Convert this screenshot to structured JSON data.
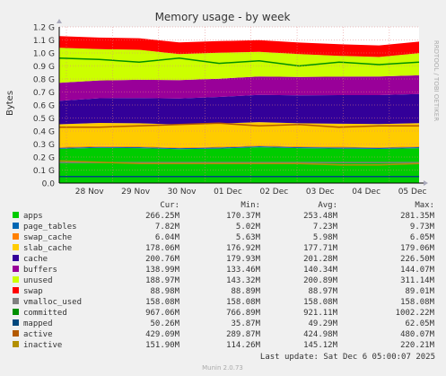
{
  "chart_data": {
    "type": "area",
    "title": "Memory usage - by week",
    "ylabel": "Bytes",
    "watermark": "RRDTOOL / TOBI OETIKER",
    "footer": "Munin 2.0.73",
    "ylim": [
      0,
      1.2
    ],
    "y_unit": "G",
    "y_ticks": [
      "0.0",
      "0.1 G",
      "0.2 G",
      "0.3 G",
      "0.4 G",
      "0.5 G",
      "0.6 G",
      "0.7 G",
      "0.8 G",
      "0.9 G",
      "1.0 G",
      "1.1 G",
      "1.2 G"
    ],
    "x_ticks": [
      "28 Nov",
      "29 Nov",
      "30 Nov",
      "01 Dec",
      "02 Dec",
      "03 Dec",
      "04 Dec",
      "05 Dec"
    ],
    "grid": true,
    "stack_series": [
      {
        "name": "apps",
        "color": "#00cc00",
        "values": [
          0.263,
          0.27,
          0.268,
          0.26,
          0.265,
          0.275,
          0.268,
          0.265,
          0.262,
          0.268
        ]
      },
      {
        "name": "page_tables",
        "color": "#0066b3",
        "values": [
          0.008,
          0.008,
          0.008,
          0.008,
          0.008,
          0.008,
          0.008,
          0.008,
          0.008,
          0.008
        ]
      },
      {
        "name": "swap_cache",
        "color": "#ff8000",
        "values": [
          0.006,
          0.006,
          0.006,
          0.006,
          0.006,
          0.006,
          0.006,
          0.006,
          0.006,
          0.006
        ]
      },
      {
        "name": "slab_cache",
        "color": "#ffcc00",
        "values": [
          0.175,
          0.178,
          0.177,
          0.176,
          0.178,
          0.179,
          0.177,
          0.177,
          0.178,
          0.178
        ]
      },
      {
        "name": "cache",
        "color": "#330099",
        "values": [
          0.18,
          0.19,
          0.195,
          0.2,
          0.205,
          0.21,
          0.215,
          0.22,
          0.222,
          0.225
        ]
      },
      {
        "name": "buffers",
        "color": "#990099",
        "values": [
          0.138,
          0.137,
          0.14,
          0.142,
          0.14,
          0.141,
          0.142,
          0.142,
          0.143,
          0.143
        ]
      },
      {
        "name": "unused",
        "color": "#ccff00",
        "values": [
          0.27,
          0.24,
          0.23,
          0.2,
          0.2,
          0.19,
          0.175,
          0.16,
          0.15,
          0.17
        ]
      },
      {
        "name": "swap",
        "color": "#ff0000",
        "values": [
          0.089,
          0.089,
          0.089,
          0.089,
          0.089,
          0.089,
          0.089,
          0.089,
          0.089,
          0.089
        ]
      }
    ],
    "line_series": [
      {
        "name": "vmalloc_used",
        "color": "#808080",
        "values": [
          0.158,
          0.158,
          0.158,
          0.158,
          0.158,
          0.158,
          0.158,
          0.158,
          0.158,
          0.158
        ]
      },
      {
        "name": "committed",
        "color": "#008f00",
        "values": [
          0.96,
          0.95,
          0.93,
          0.96,
          0.92,
          0.94,
          0.9,
          0.93,
          0.91,
          0.93
        ]
      },
      {
        "name": "mapped",
        "color": "#00487d",
        "values": [
          0.05,
          0.05,
          0.05,
          0.05,
          0.05,
          0.05,
          0.05,
          0.05,
          0.05,
          0.05
        ]
      },
      {
        "name": "active",
        "color": "#b35a00",
        "values": [
          0.43,
          0.43,
          0.44,
          0.45,
          0.46,
          0.44,
          0.45,
          0.43,
          0.44,
          0.44
        ]
      },
      {
        "name": "inactive",
        "color": "#b38f00",
        "values": [
          0.17,
          0.16,
          0.15,
          0.15,
          0.15,
          0.15,
          0.15,
          0.14,
          0.14,
          0.15
        ]
      }
    ],
    "legend": {
      "headers": [
        "Cur:",
        "Min:",
        "Avg:",
        "Max:"
      ],
      "rows": [
        {
          "name": "apps",
          "color": "#00cc00",
          "cur": "266.25M",
          "min": "170.37M",
          "avg": "253.48M",
          "max": "281.35M"
        },
        {
          "name": "page_tables",
          "color": "#0066b3",
          "cur": "7.82M",
          "min": "5.02M",
          "avg": "7.23M",
          "max": "9.73M"
        },
        {
          "name": "swap_cache",
          "color": "#ff8000",
          "cur": "6.04M",
          "min": "5.63M",
          "avg": "5.98M",
          "max": "6.05M"
        },
        {
          "name": "slab_cache",
          "color": "#ffcc00",
          "cur": "178.06M",
          "min": "176.92M",
          "avg": "177.71M",
          "max": "179.06M"
        },
        {
          "name": "cache",
          "color": "#330099",
          "cur": "200.76M",
          "min": "179.93M",
          "avg": "201.28M",
          "max": "226.50M"
        },
        {
          "name": "buffers",
          "color": "#990099",
          "cur": "138.99M",
          "min": "133.46M",
          "avg": "140.34M",
          "max": "144.07M"
        },
        {
          "name": "unused",
          "color": "#ccff00",
          "cur": "188.97M",
          "min": "143.32M",
          "avg": "200.89M",
          "max": "311.14M"
        },
        {
          "name": "swap",
          "color": "#ff0000",
          "cur": "88.98M",
          "min": "88.89M",
          "avg": "88.97M",
          "max": "89.01M"
        },
        {
          "name": "vmalloc_used",
          "color": "#808080",
          "cur": "158.08M",
          "min": "158.08M",
          "avg": "158.08M",
          "max": "158.08M"
        },
        {
          "name": "committed",
          "color": "#008f00",
          "cur": "967.06M",
          "min": "766.89M",
          "avg": "921.11M",
          "max": "1002.22M"
        },
        {
          "name": "mapped",
          "color": "#00487d",
          "cur": "50.26M",
          "min": "35.87M",
          "avg": "49.29M",
          "max": "62.05M"
        },
        {
          "name": "active",
          "color": "#b35a00",
          "cur": "429.09M",
          "min": "289.87M",
          "avg": "424.98M",
          "max": "480.07M"
        },
        {
          "name": "inactive",
          "color": "#b38f00",
          "cur": "151.90M",
          "min": "114.26M",
          "avg": "145.12M",
          "max": "220.21M"
        }
      ]
    },
    "last_update": "Last update: Sat Dec  6 05:00:07 2025"
  }
}
